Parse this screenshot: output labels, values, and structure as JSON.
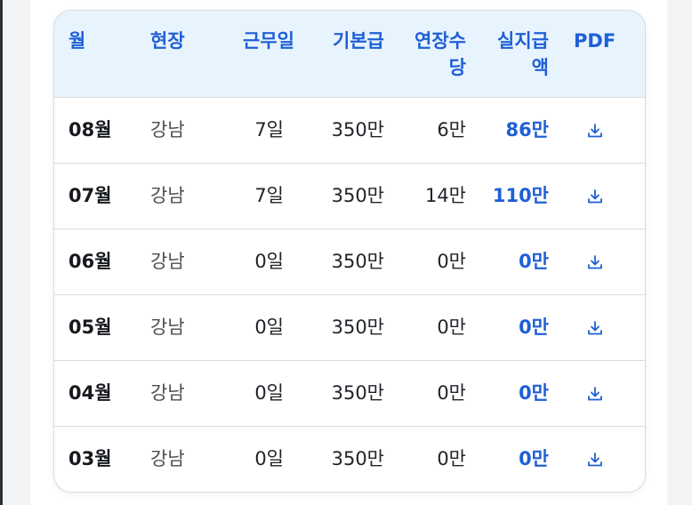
{
  "table": {
    "headers": {
      "month": "월",
      "site": "현장",
      "days": "근무일",
      "base": "기본급",
      "overtime": "연장수당",
      "net": "실지급액",
      "pdf": "PDF"
    },
    "rows": [
      {
        "month": "08월",
        "site": "강남",
        "days": "7일",
        "base": "350만",
        "overtime": "6만",
        "net": "86만"
      },
      {
        "month": "07월",
        "site": "강남",
        "days": "7일",
        "base": "350만",
        "overtime": "14만",
        "net": "110만"
      },
      {
        "month": "06월",
        "site": "강남",
        "days": "0일",
        "base": "350만",
        "overtime": "0만",
        "net": "0만"
      },
      {
        "month": "05월",
        "site": "강남",
        "days": "0일",
        "base": "350만",
        "overtime": "0만",
        "net": "0만"
      },
      {
        "month": "04월",
        "site": "강남",
        "days": "0일",
        "base": "350만",
        "overtime": "0만",
        "net": "0만"
      },
      {
        "month": "03월",
        "site": "강남",
        "days": "0일",
        "base": "350만",
        "overtime": "0만",
        "net": "0만"
      }
    ]
  },
  "icons": {
    "download": "download-icon"
  },
  "colors": {
    "accent": "#1f5fd6",
    "header_bg": "#e8f4fd",
    "border": "#d9dce0"
  }
}
